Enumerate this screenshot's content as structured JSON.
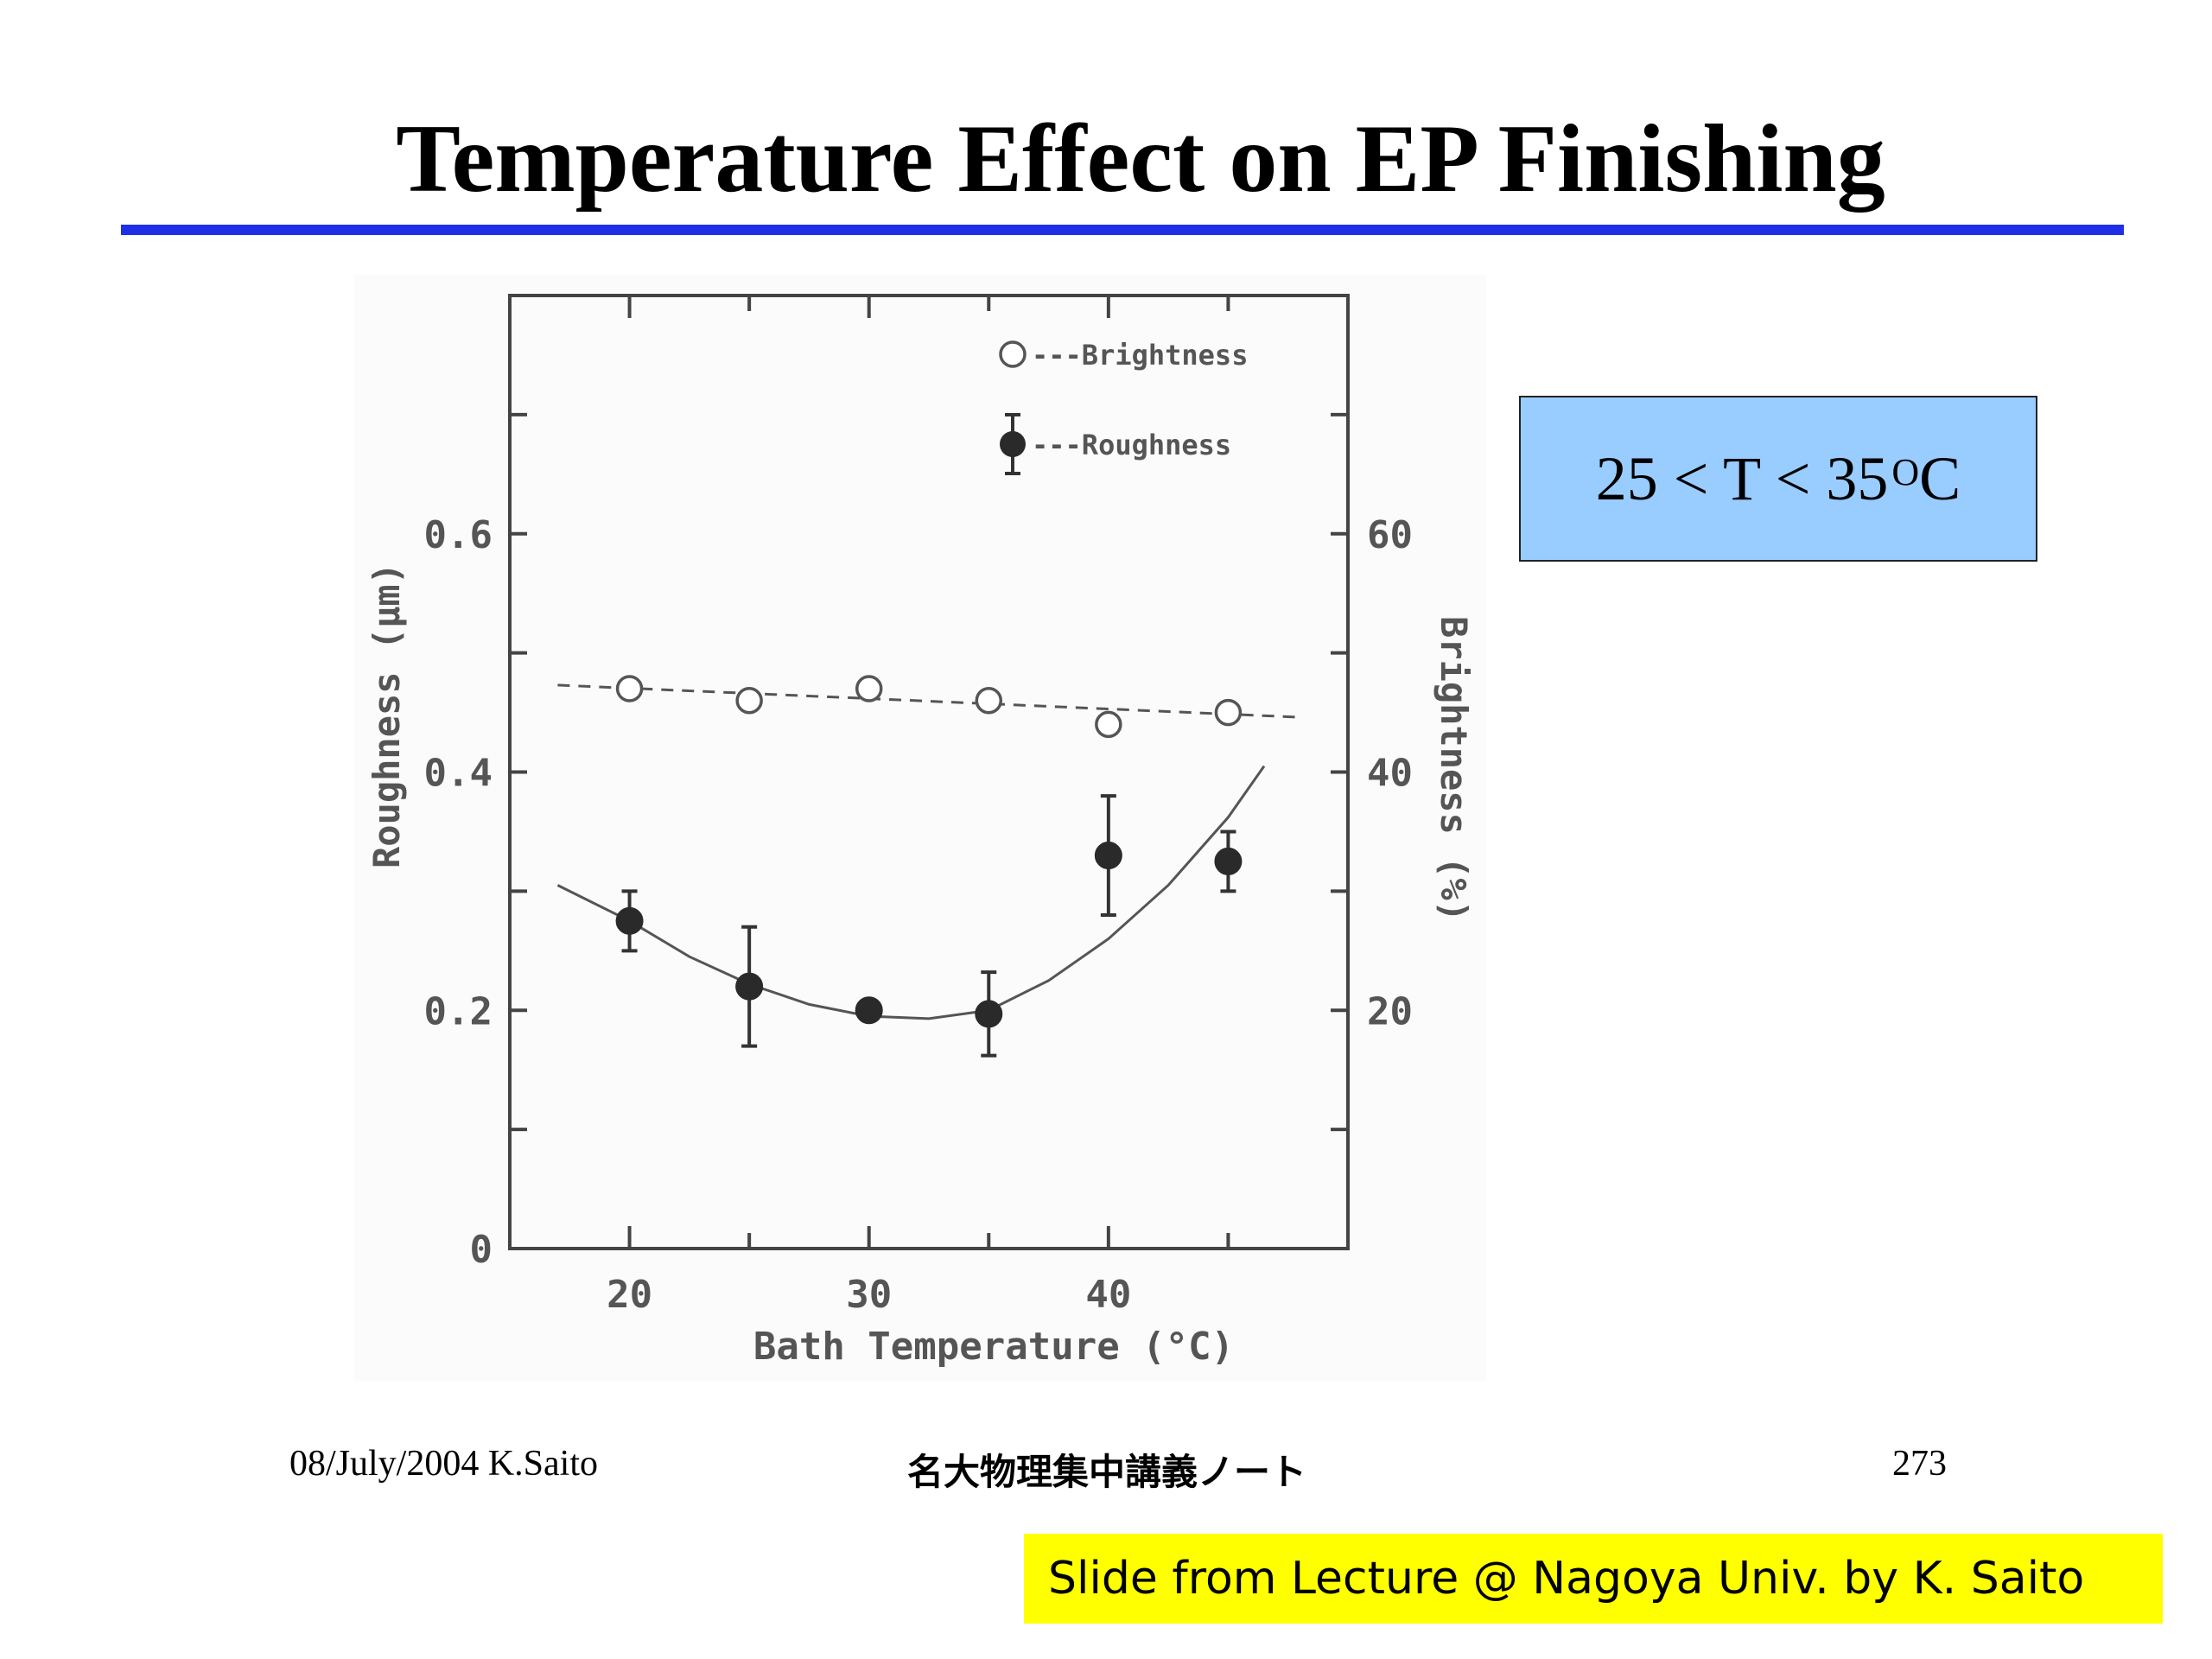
{
  "slide": {
    "title": "Temperature Effect on EP Finishing",
    "callout": {
      "main": "25 < T < 35 ",
      "sup": "O",
      "unit": "C"
    },
    "footer": {
      "date_author": "08/July/2004 K.Saito",
      "lecture": "名大物理集中講義ノート",
      "page": "273"
    },
    "banner": "Slide from Lecture @ Nagoya Univ. by K. Saito",
    "colors": {
      "rule": "#1f2fe6",
      "callout_bg": "#99ccff",
      "banner_bg": "#ffff00"
    }
  },
  "chart_data": {
    "type": "scatter",
    "xlabel": "Bath  Temperature (°C)",
    "ylabel_left": "Roughness (μm)",
    "ylabel_right": "Brightness (%)",
    "xlim": [
      15,
      50
    ],
    "ylim_left": [
      0,
      0.8
    ],
    "ylim_right": [
      0,
      80
    ],
    "x_ticks": [
      20,
      30,
      40
    ],
    "x_ticks_minor": [
      20,
      25,
      30,
      35,
      40,
      45
    ],
    "y_left_ticks": [
      "0",
      "0.2",
      "0.4",
      "0.6"
    ],
    "y_left_tick_values": [
      0,
      0.2,
      0.4,
      0.6
    ],
    "y_left_ticks_minor": [
      0,
      0.1,
      0.2,
      0.3,
      0.4,
      0.5,
      0.6,
      0.7
    ],
    "y_right_ticks": [
      "20",
      "40",
      "60"
    ],
    "y_right_tick_values": [
      20,
      40,
      60
    ],
    "y_right_ticks_minor": [
      10,
      20,
      30,
      40,
      50,
      60,
      70
    ],
    "legend": [
      {
        "label": "---Brightness",
        "marker": "open-circle"
      },
      {
        "label": "---Roughness",
        "marker": "filled-circle-errorbar"
      }
    ],
    "legend_position": "top-right",
    "series": [
      {
        "name": "Brightness",
        "axis": "right",
        "marker": "open-circle",
        "x": [
          20,
          25,
          30,
          35,
          40,
          45
        ],
        "y": [
          47,
          46,
          47,
          46,
          44,
          45
        ],
        "trend": {
          "style": "dashed",
          "x": [
            17,
            48
          ],
          "y": [
            47.3,
            44.6
          ]
        }
      },
      {
        "name": "Roughness",
        "axis": "left",
        "marker": "filled-circle",
        "x": [
          20,
          25,
          30,
          35,
          40,
          45
        ],
        "y": [
          0.275,
          0.22,
          0.2,
          0.197,
          0.33,
          0.325
        ],
        "err_low": [
          0.025,
          0.05,
          0.0,
          0.035,
          0.05,
          0.025
        ],
        "err_high": [
          0.025,
          0.05,
          0.0,
          0.035,
          0.05,
          0.025
        ],
        "trend": {
          "style": "solid",
          "x": [
            17,
            20,
            22.5,
            25,
            27.5,
            30,
            32.5,
            35,
            37.5,
            40,
            42.5,
            45,
            46.5
          ],
          "y": [
            0.305,
            0.275,
            0.245,
            0.222,
            0.205,
            0.195,
            0.193,
            0.2,
            0.225,
            0.26,
            0.305,
            0.362,
            0.405
          ]
        }
      }
    ]
  }
}
